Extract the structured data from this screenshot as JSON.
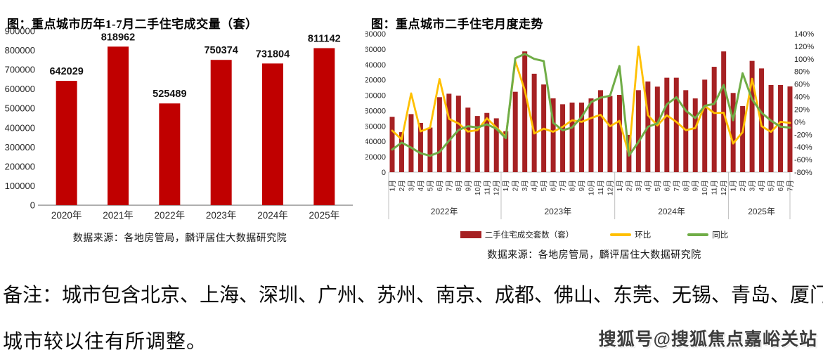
{
  "watermark": "搜狐号@搜狐焦点嘉峪关站",
  "note": {
    "line1": "备注：城市包含北京、上海、深圳、广州、苏州、南京、成都、佛山、东莞、无锡、青岛、厦门、郑州，",
    "line2": "城市较以往有所调整。"
  },
  "chart_data": [
    {
      "type": "bar",
      "title": "图：重点城市历年1-7月二手住宅成交量（套）",
      "source": "数据来源：各地房管局，麟评居住大数据研究院",
      "categories": [
        "2020年",
        "2021年",
        "2022年",
        "2023年",
        "2024年",
        "2025年"
      ],
      "values": [
        642029,
        818962,
        525489,
        750374,
        731804,
        811142
      ],
      "value_labels": [
        "642029",
        "818962",
        "525489",
        "750374",
        "731804",
        "811142"
      ],
      "ylabel": "",
      "ylim": [
        0,
        900000
      ],
      "ytick_step": 100000,
      "grid": false,
      "bar_color": "#C00000",
      "axis_color": "#7f7f7f",
      "tick_color": "#262626"
    },
    {
      "type": "bar+line combo",
      "title": "图：重点城市二手住宅月度走势",
      "source": "数据来源：各地房管局，麟评居住大数据研究院",
      "legend": [
        {
          "label": "二手住宅成交套数（套）",
          "color": "#A62123",
          "kind": "bar"
        },
        {
          "label": "环比",
          "color": "#FFC000",
          "kind": "line"
        },
        {
          "label": "同比",
          "color": "#70AD47",
          "kind": "line"
        }
      ],
      "legend_position": "bottom",
      "month_label_suffix": "月",
      "ylim_left": [
        0,
        180000
      ],
      "ytick_left_step": 20000,
      "ylim_right_pct": [
        -80,
        140
      ],
      "ytick_right_step_pct": 20,
      "grid": false,
      "axis_color": "#bfbfbf",
      "tick_color": "#262626",
      "groups": [
        {
          "label": "2022年",
          "month_count": 12,
          "bars": [
            72000,
            52000,
            75500,
            64000,
            58000,
            97500,
            102000,
            99500,
            84000,
            73000,
            77000,
            70000
          ],
          "huanbi": [
            -14.0,
            -27.8,
            45.2,
            -15.2,
            -9.4,
            68.1,
            4.6,
            -2.5,
            -15.6,
            -13.1,
            5.5,
            -9.1
          ],
          "tongbi": [
            -44,
            -33,
            -41,
            -50,
            -54,
            -48,
            -30,
            -13,
            -7,
            -9,
            -4,
            -11
          ]
        },
        {
          "label": "2023年",
          "month_count": 12,
          "bars": [
            53300,
            104500,
            157000,
            128000,
            114000,
            96000,
            88300,
            90500,
            90500,
            95900,
            106600,
            99000
          ],
          "huanbi": [
            -23.9,
            96.1,
            50.2,
            -18.5,
            -10.9,
            -15.8,
            -8.0,
            2.5,
            0.0,
            6.0,
            11.2,
            -7.1
          ],
          "tongbi": [
            -26.0,
            101.0,
            107.9,
            100.0,
            96.6,
            -1.5,
            -13.4,
            -9.0,
            7.7,
            31.4,
            38.4,
            41.4
          ]
        },
        {
          "label": "2024年",
          "month_count": 12,
          "bars": [
            100500,
            48500,
            106600,
            117900,
            111200,
            122800,
            122800,
            106600,
            95900,
            120300,
            137000,
            157000
          ],
          "huanbi": [
            1.5,
            -51.7,
            119.8,
            10.6,
            -5.7,
            10.4,
            0.0,
            -13.2,
            -10.0,
            25.4,
            13.9,
            14.6
          ],
          "tongbi": [
            88.6,
            -53.6,
            -32.1,
            -7.9,
            -2.5,
            27.9,
            39.1,
            17.8,
            6.0,
            25.4,
            28.5,
            58.6
          ]
        },
        {
          "label": "2025年",
          "month_count": 7,
          "bars": [
            103000,
            85900,
            144700,
            134900,
            113300,
            113300,
            111500
          ],
          "huanbi": [
            -34.4,
            -16.6,
            68.4,
            -6.8,
            -16.0,
            0.0,
            -1.6
          ],
          "tongbi": [
            2.5,
            77.1,
            35.7,
            14.4,
            1.9,
            -7.7,
            -9.2
          ]
        }
      ]
    }
  ]
}
